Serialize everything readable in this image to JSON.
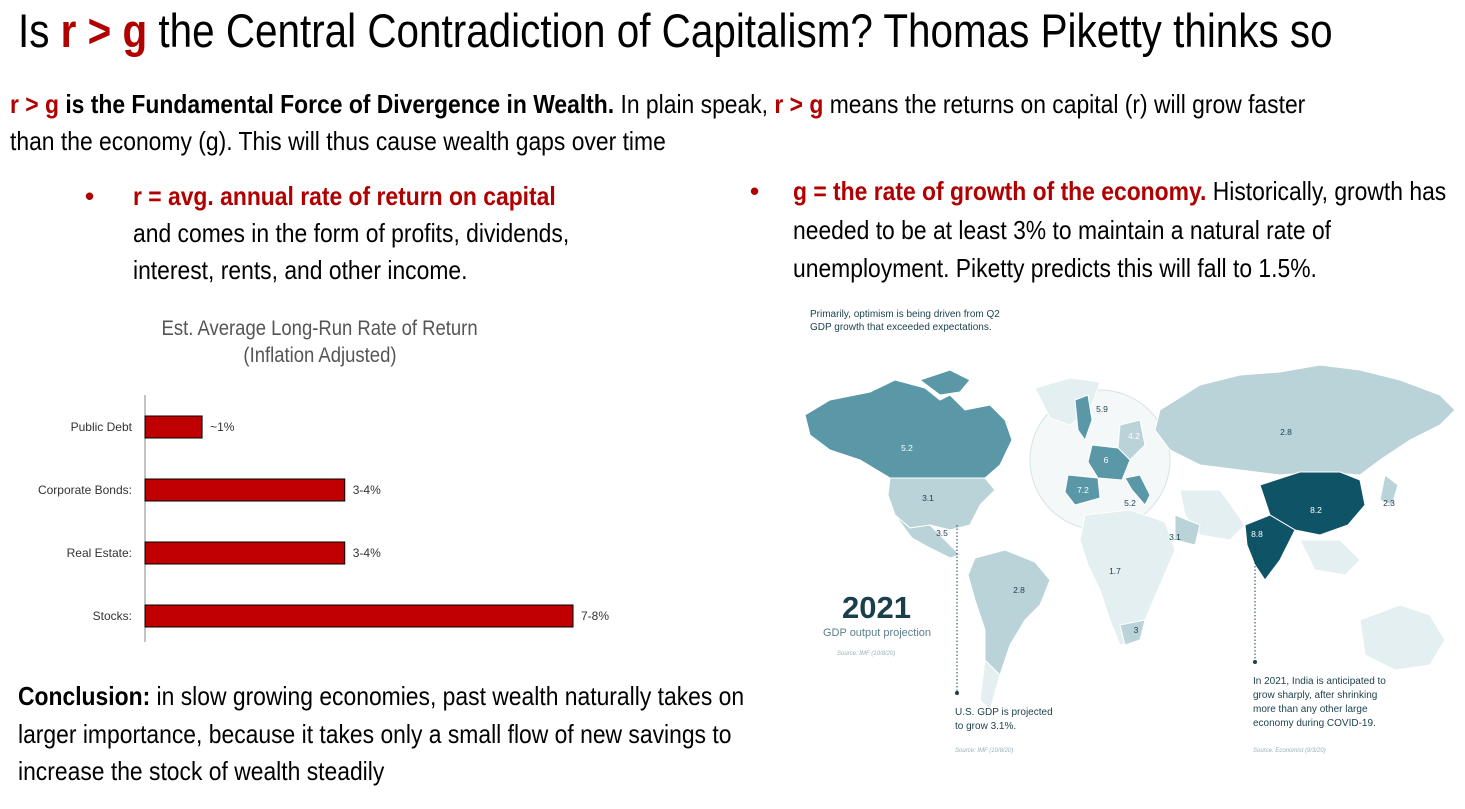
{
  "title": {
    "prefix": "Is ",
    "formula": "r > g",
    "suffix": " the Central Contradiction of Capitalism? Thomas Piketty thinks so"
  },
  "intro": {
    "formula": "r > g",
    "bold_rest": " is the Fundamental Force of Divergence in Wealth.",
    "text1": " In plain speak, ",
    "formula2": "r > g",
    "text2": " means the returns on capital (r) will grow faster than the economy (g). This will thus cause wealth gaps over time"
  },
  "bullet_r": {
    "dot": "•",
    "heading": "r = avg. annual rate of return on capital",
    "body": "and comes in the form of profits, dividends, interest, rents, and other income."
  },
  "bullet_g": {
    "dot": "•",
    "heading": "g = the rate of growth of the economy.",
    "body": " Historically, growth has needed to be at least 3% to maintain a natural rate of unemployment. Piketty predicts this will fall to 1.5%."
  },
  "chart_data": {
    "type": "bar",
    "orientation": "horizontal",
    "title": "Est. Average Long-Run Rate of Return",
    "subtitle": "(Inflation Adjusted)",
    "categories": [
      "Public Debt",
      "Corporate Bonds:",
      "Real Estate:",
      "Stocks:"
    ],
    "values": [
      1,
      3.5,
      3.5,
      7.5
    ],
    "data_labels": [
      "~1%",
      "3-4%",
      "3-4%",
      "7-8%"
    ],
    "xlim": [
      0,
      8
    ],
    "bar_color": "#c00000",
    "grid": false
  },
  "map": {
    "caption_top": "Primarily, optimism is being driven from Q2 GDP growth that exceeded expectations.",
    "year": "2021",
    "subtitle": "GDP output projection",
    "source_main": "Source: IMF (10/8/20)",
    "us_note": "U.S. GDP is projected to grow 3.1%.",
    "us_source": "Source: IMF (10/8/20)",
    "india_note": "In 2021, India is anticipated to grow sharply, after shrinking more than any other large economy during COVID-19.",
    "india_source": "Source: Economist (9/3/20)",
    "values": {
      "canada": "5.2",
      "us": "3.1",
      "mexico": "3.5",
      "brazil": "2.8",
      "uk": "5.9",
      "germany": "4.2",
      "france": "6",
      "spain": "7.2",
      "italy": "5.2",
      "saudi": "3.1",
      "russia": "2.8",
      "china": "8.2",
      "japan": "2.3",
      "india": "8.8",
      "nigeria": "1.7",
      "south_africa": "3"
    },
    "colors": {
      "light": "#b9d3d9",
      "medium": "#5a97a7",
      "dark": "#0e5366",
      "pale": "#e4eff1",
      "text": "#1a3f4c"
    }
  },
  "conclusion": {
    "label": "Conclusion:",
    "text": " in slow growing economies, past wealth naturally takes on larger importance, because it takes only a small flow of new savings to increase the stock of wealth steadily"
  }
}
